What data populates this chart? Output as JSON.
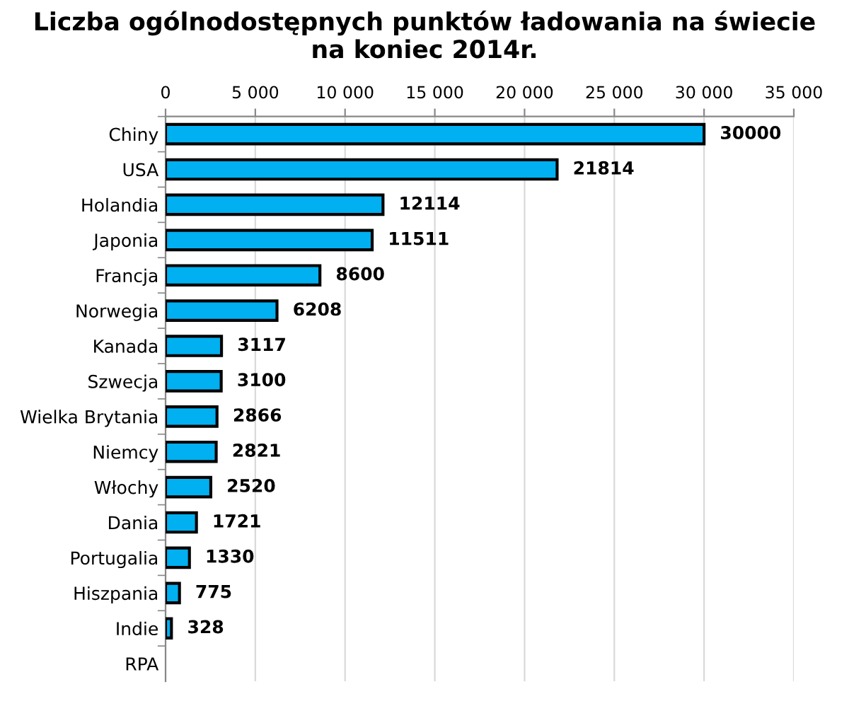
{
  "chart_data": {
    "type": "bar",
    "orientation": "horizontal",
    "title": "Liczba ogólnodostępnych punktów ładowania na świecie\nna koniec 2014r.",
    "categories": [
      "Chiny",
      "USA",
      "Holandia",
      "Japonia",
      "Francja",
      "Norwegia",
      "Kanada",
      "Szwecja",
      "Wielka Brytania",
      "Niemcy",
      "Włochy",
      "Dania",
      "Portugalia",
      "Hiszpania",
      "Indie",
      "RPA"
    ],
    "values": [
      30000,
      21814,
      12114,
      11511,
      8600,
      6208,
      3117,
      3100,
      2866,
      2821,
      2520,
      1721,
      1330,
      775,
      328,
      null
    ],
    "color": "#00b0f0",
    "data_labels": true,
    "grid": "x",
    "legend": false,
    "xlim": [
      0,
      35000
    ],
    "xticks": [
      0,
      {
        "value": 5000,
        "label": "5 000"
      },
      {
        "value": 10000,
        "label": "10 000"
      },
      {
        "value": 15000,
        "label": "15 000"
      },
      {
        "value": 20000,
        "label": "20 000"
      },
      {
        "value": 25000,
        "label": "25 000"
      },
      {
        "value": 30000,
        "label": "30 000"
      },
      {
        "value": 35000,
        "label": "35 000"
      }
    ]
  }
}
